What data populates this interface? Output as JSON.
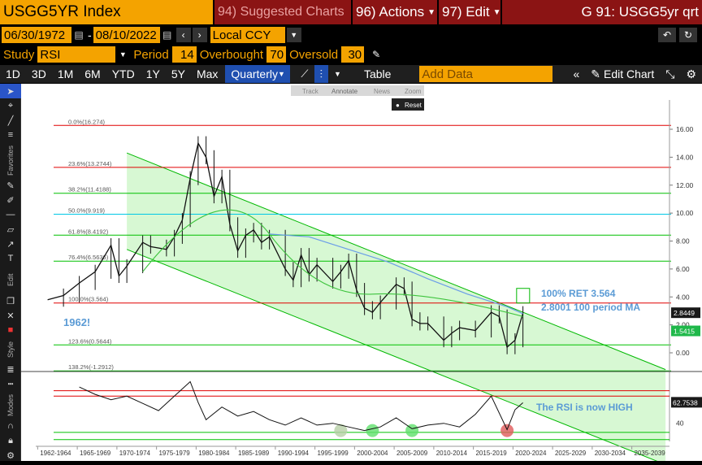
{
  "header": {
    "ticker": "USGG5YR Index",
    "suggested": "94) Suggested Charts",
    "actions": "96) Actions",
    "edit": "97) Edit",
    "title": "G 91: USGG5yr qrt"
  },
  "dates": {
    "start": "06/30/1972",
    "sep": "-",
    "end": "08/10/2022",
    "currency": "Local CCY"
  },
  "study": {
    "label": "Study",
    "name": "RSI",
    "period_label": "Period",
    "period": "14",
    "overbought_label": "Overbought",
    "overbought": "70",
    "oversold_label": "Oversold",
    "oversold": "30"
  },
  "toolbar": {
    "ranges": [
      "1D",
      "3D",
      "1M",
      "6M",
      "YTD",
      "1Y",
      "5Y",
      "Max"
    ],
    "frequency": "Quarterly",
    "table": "Table",
    "add_data_placeholder": "Add Data",
    "edit_chart": "Edit Chart"
  },
  "mini_toolbar": {
    "track": "Track",
    "annotate": "Annotate",
    "news": "News",
    "zoom": "Zoom",
    "reset": "Reset"
  },
  "sidebar": {
    "favorites": "Favorites",
    "edit": "Edit",
    "style": "Style",
    "modes": "Modes"
  },
  "colors": {
    "accent": "#f4a300",
    "fib_red": "#e00000",
    "fib_green": "#00c000",
    "fib_cyan": "#00c8e6",
    "channel": "#00b800",
    "ma": "#6b9de8",
    "annot": "#5b9bd5"
  },
  "chart_data": {
    "type": "line",
    "price_axis": {
      "ylim": [
        -1.5,
        17
      ],
      "ticks": [
        "16.00",
        "14.00",
        "12.00",
        "10.00",
        "8.00",
        "6.00",
        "4.00",
        "2.00",
        "0.00"
      ]
    },
    "fib_levels": [
      {
        "label": "0.0%(16.274)",
        "value": 16.274,
        "color": "#e00000"
      },
      {
        "label": "23.6%(13.2744)",
        "value": 13.2744,
        "color": "#e00000"
      },
      {
        "label": "38.2%(11.4188)",
        "value": 11.4188,
        "color": "#00c000"
      },
      {
        "label": "50.0%(9.919)",
        "value": 9.919,
        "color": "#00c8e6"
      },
      {
        "label": "61.8%(8.4192)",
        "value": 8.4192,
        "color": "#00c000"
      },
      {
        "label": "76.4%(6.5636)",
        "value": 6.5636,
        "color": "#00c000"
      },
      {
        "label": "100.0%(3.564)",
        "value": 3.564,
        "color": "#e00000"
      },
      {
        "label": "123.6%(0.5644)",
        "value": 0.5644,
        "color": "#00c000"
      },
      {
        "label": "138.2%(-1.2912)",
        "value": -1.2912,
        "color": "#00c000"
      }
    ],
    "x_labels": [
      "1962-1964",
      "1965-1969",
      "1970-1974",
      "1975-1979",
      "1980-1984",
      "1985-1989",
      "1990-1994",
      "1995-1999",
      "2000-2004",
      "2005-2009",
      "2010-2014",
      "2015-2019",
      "2020-2024",
      "2025-2029",
      "2030-2034",
      "2035-2039"
    ],
    "price_series": {
      "name": "USGG5YR Index",
      "x": [
        1962,
        1964,
        1966,
        1968,
        1970,
        1971,
        1972,
        1974,
        1975,
        1977,
        1978,
        1979,
        1980,
        1981,
        1982,
        1983,
        1984,
        1985,
        1986,
        1987,
        1988,
        1989,
        1990,
        1992,
        1993,
        1994,
        1995,
        1996,
        1998,
        1999,
        2000,
        2001,
        2002,
        2003,
        2004,
        2006,
        2007,
        2008,
        2009,
        2010,
        2012,
        2013,
        2014,
        2016,
        2018,
        2019,
        2020,
        2021,
        2022
      ],
      "y": [
        3.8,
        4.1,
        5.0,
        5.8,
        7.7,
        5.5,
        6.2,
        7.9,
        7.6,
        7.4,
        8.3,
        9.5,
        12.5,
        15.0,
        14.0,
        11.2,
        12.6,
        9.2,
        7.3,
        8.4,
        8.8,
        7.9,
        8.3,
        6.0,
        5.2,
        7.0,
        5.6,
        6.3,
        5.1,
        5.8,
        6.6,
        4.5,
        3.2,
        2.9,
        3.6,
        4.9,
        4.6,
        2.4,
        2.1,
        2.1,
        0.9,
        1.4,
        1.8,
        1.6,
        2.9,
        2.6,
        0.4,
        0.9,
        2.84
      ]
    },
    "ma_series": {
      "name": "100 period MA",
      "x": [
        1990,
        1995,
        2000,
        2005,
        2010,
        2015,
        2020,
        2022
      ],
      "y": [
        8.5,
        8.3,
        7.4,
        6.5,
        5.3,
        4.2,
        3.3,
        2.8
      ]
    },
    "channel": {
      "upper": {
        "x": [
          1972,
          2040
        ],
        "y": [
          14.3,
          -1.2
        ]
      },
      "lower": {
        "x": [
          1972,
          2040
        ],
        "y": [
          7.4,
          -8.0
        ]
      }
    },
    "target_box_value": 3.564,
    "price_tags": [
      "2.8449",
      "1.5415"
    ],
    "rsi_tag": "62.7538",
    "rsi_axis": {
      "ticks": [
        "40"
      ]
    },
    "rsi_series": {
      "name": "RSI",
      "x": [
        1966,
        1968,
        1970,
        1972,
        1974,
        1976,
        1978,
        1980,
        1981,
        1982,
        1984,
        1986,
        1988,
        1990,
        1992,
        1994,
        1996,
        1998,
        2000,
        2002,
        2004,
        2006,
        2008,
        2010,
        2012,
        2014,
        2016,
        2018,
        2020,
        2021,
        2022
      ],
      "y": [
        80,
        72,
        66,
        70,
        62,
        54,
        70,
        86,
        63,
        44,
        58,
        48,
        53,
        44,
        38,
        46,
        38,
        40,
        36,
        32,
        36,
        46,
        34,
        38,
        40,
        36,
        50,
        70,
        33,
        55,
        62.75
      ]
    },
    "rsi_lows_circles": [
      {
        "x": 1999,
        "color": "#b6cfa6"
      },
      {
        "x": 2003,
        "color": "#5fe06b"
      },
      {
        "x": 2008,
        "color": "#5fe06b"
      },
      {
        "x": 2020,
        "color": "#e05a5a"
      }
    ],
    "annotations": {
      "ret": "100% RET 3.564",
      "ma": "2.8001 100 period MA",
      "year": "1962!",
      "rsi": "The RSI is now HIGH"
    }
  }
}
